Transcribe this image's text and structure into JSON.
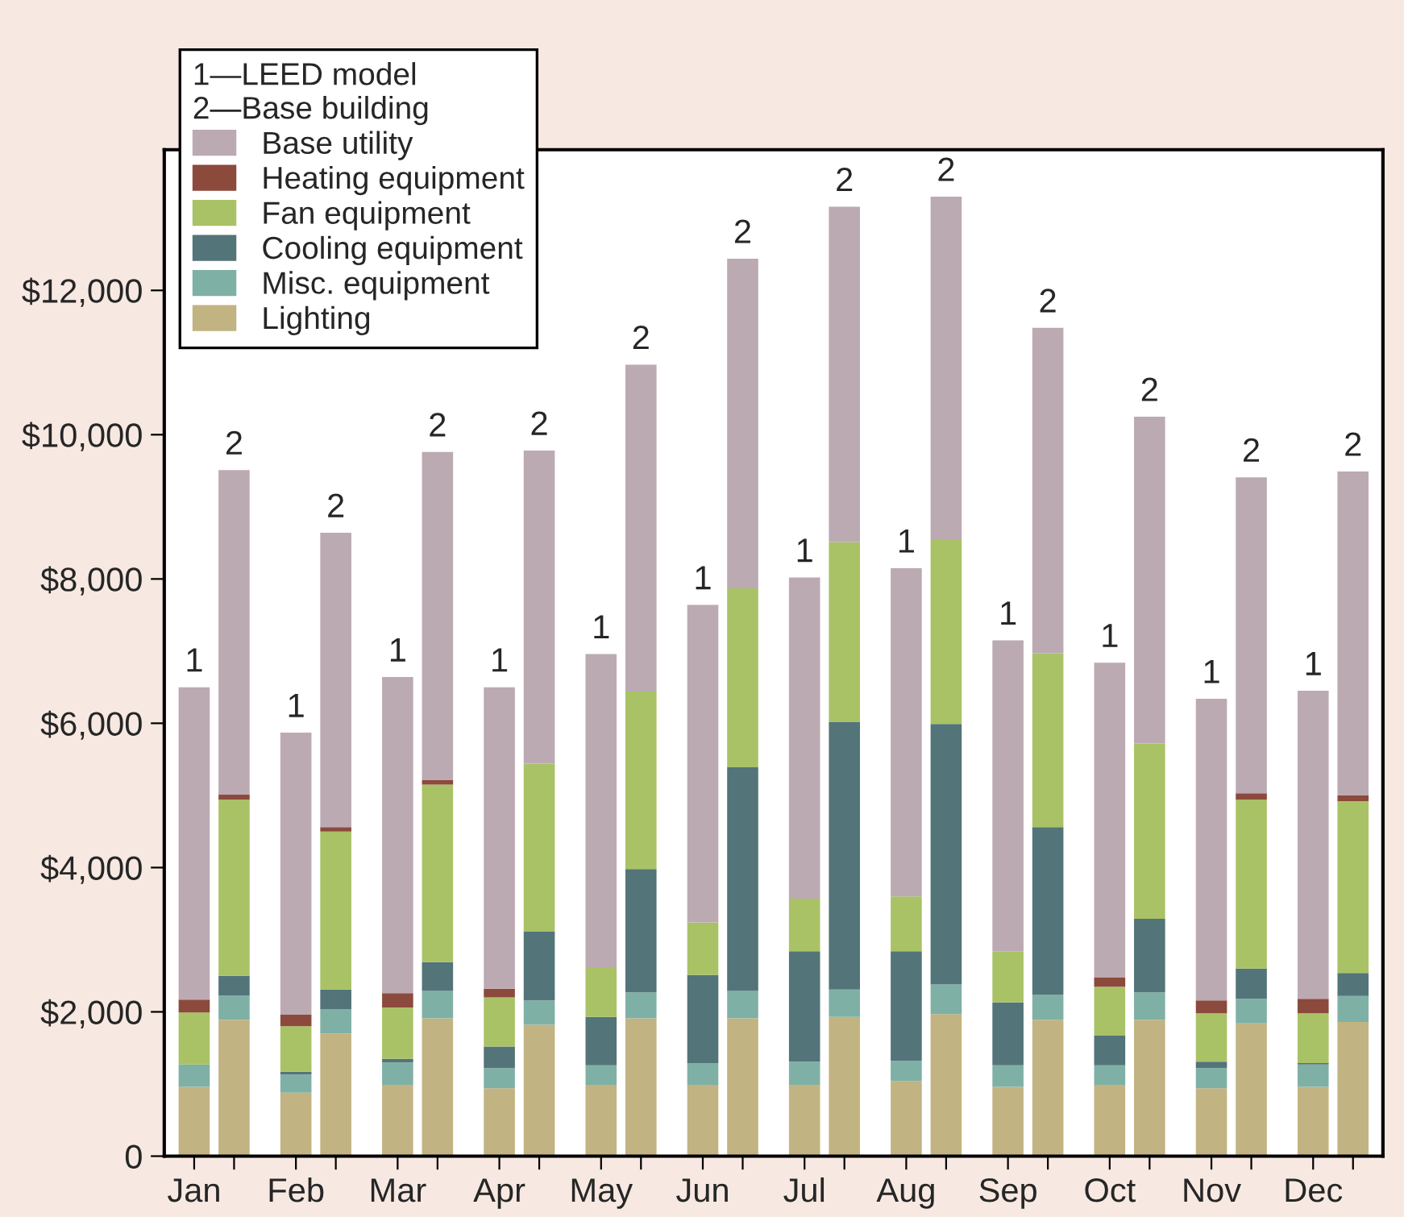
{
  "chart_data": {
    "type": "bar",
    "stacked": true,
    "categories": [
      "Jan",
      null,
      "Feb",
      null,
      "Mar",
      null,
      "Apr",
      null,
      "May",
      null,
      "Jun",
      null,
      "Jul",
      null,
      "Aug",
      null,
      "Sep",
      null,
      "Oct",
      null,
      "Nov",
      null,
      "Dec",
      null
    ],
    "legend_title": "1—LEED model\n2—Base building",
    "legend": "top left",
    "ylim": [
      0,
      13950
    ],
    "yticks": [
      0,
      {
        "value": 2000,
        "label": "$2,000"
      },
      {
        "value": 4000,
        "label": "$4,000"
      },
      {
        "value": 6000,
        "label": "$6,000"
      },
      {
        "value": 8000,
        "label": "$8,000"
      },
      {
        "value": 10000,
        "label": "$10,000"
      },
      {
        "value": 12000,
        "label": "$12,000"
      }
    ],
    "annotations": [
      "1",
      "2",
      "1",
      "2",
      "1",
      "2",
      "1",
      "2",
      "1",
      "2",
      "1",
      "2",
      "1",
      "2",
      "1",
      "2",
      "1",
      "2",
      "1",
      "2",
      "1",
      "2",
      "1",
      "2"
    ],
    "series": [
      {
        "name": "Lighting",
        "color": "#c2b382",
        "values": [
          960,
          1890,
          880,
          1700,
          990,
          1910,
          940,
          1820,
          990,
          1910,
          990,
          1910,
          990,
          1930,
          1040,
          1970,
          960,
          1890,
          990,
          1890,
          940,
          1840,
          960,
          1860
        ]
      },
      {
        "name": "Misc. equipment",
        "color": "#7fb0a5",
        "values": [
          310,
          340,
          250,
          340,
          310,
          380,
          280,
          340,
          270,
          360,
          300,
          380,
          320,
          380,
          280,
          410,
          300,
          350,
          270,
          380,
          280,
          340,
          310,
          360
        ]
      },
      {
        "name": "Cooling equipment",
        "color": "#537479",
        "values": [
          0,
          270,
          40,
          270,
          50,
          400,
          300,
          950,
          670,
          1710,
          1220,
          3100,
          1530,
          3710,
          1520,
          3610,
          870,
          2320,
          410,
          1020,
          90,
          420,
          20,
          320
        ]
      },
      {
        "name": "Fan equipment",
        "color": "#a9c266",
        "values": [
          720,
          2440,
          630,
          2190,
          710,
          2460,
          680,
          2330,
          690,
          2460,
          730,
          2480,
          730,
          2490,
          760,
          2550,
          710,
          2410,
          680,
          2430,
          670,
          2340,
          690,
          2380
        ]
      },
      {
        "name": "Heating equipment",
        "color": "#8b4a3c",
        "values": [
          180,
          70,
          160,
          60,
          200,
          60,
          120,
          0,
          0,
          0,
          0,
          0,
          0,
          0,
          0,
          0,
          0,
          0,
          130,
          0,
          180,
          90,
          200,
          80
        ]
      },
      {
        "name": "Base utility",
        "color": "#bcaab3",
        "values": [
          4330,
          4500,
          3910,
          4080,
          4380,
          4550,
          4180,
          4340,
          4340,
          4530,
          4400,
          4570,
          4450,
          4650,
          4550,
          4760,
          4310,
          4510,
          4360,
          4530,
          4180,
          4380,
          4270,
          4490
        ]
      }
    ]
  }
}
